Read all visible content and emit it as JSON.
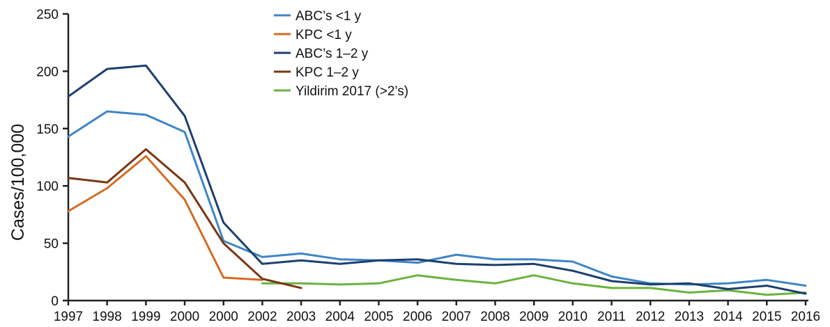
{
  "chart_data": {
    "type": "line",
    "title": "",
    "xlabel": "",
    "ylabel": "Cases/100,000",
    "ylim": [
      0,
      250
    ],
    "yticks": [
      0,
      50,
      100,
      150,
      200,
      250
    ],
    "categories": [
      "1997",
      "1998",
      "1999",
      "2000",
      "2000",
      "2002",
      "2003",
      "2004",
      "2005",
      "2006",
      "2007",
      "2008",
      "2009",
      "2010",
      "2011",
      "2012",
      "2013",
      "2014",
      "2015",
      "2016"
    ],
    "grid": false,
    "legend_position": "top-center",
    "series": [
      {
        "name": "ABC’s <1 y",
        "color": "#3d85c6",
        "values": [
          143,
          165,
          162,
          147,
          52,
          38,
          41,
          36,
          35,
          33,
          40,
          36,
          36,
          34,
          21,
          15,
          14,
          15,
          18,
          13
        ]
      },
      {
        "name": "KPC <1 y",
        "color": "#d46b22",
        "values": [
          78,
          98,
          126,
          88,
          20,
          18,
          null,
          null,
          null,
          null,
          null,
          null,
          null,
          null,
          null,
          null,
          null,
          null,
          null,
          null
        ]
      },
      {
        "name": "ABC’s 1–2 y",
        "color": "#1c3f6e",
        "values": [
          178,
          202,
          205,
          161,
          68,
          32,
          35,
          32,
          35,
          36,
          32,
          31,
          32,
          26,
          17,
          14,
          15,
          10,
          13,
          6
        ]
      },
      {
        "name": "KPC 1–2 y",
        "color": "#7a3512",
        "values": [
          107,
          103,
          132,
          103,
          50,
          19,
          11,
          null,
          null,
          null,
          null,
          null,
          null,
          null,
          null,
          null,
          null,
          null,
          null,
          null
        ]
      },
      {
        "name": "Yildirim 2017 (>2’s)",
        "color": "#6ab23c",
        "values": [
          null,
          null,
          null,
          null,
          null,
          15,
          15,
          14,
          15,
          22,
          18,
          15,
          22,
          15,
          11,
          11,
          7,
          9,
          5,
          7
        ]
      }
    ]
  }
}
